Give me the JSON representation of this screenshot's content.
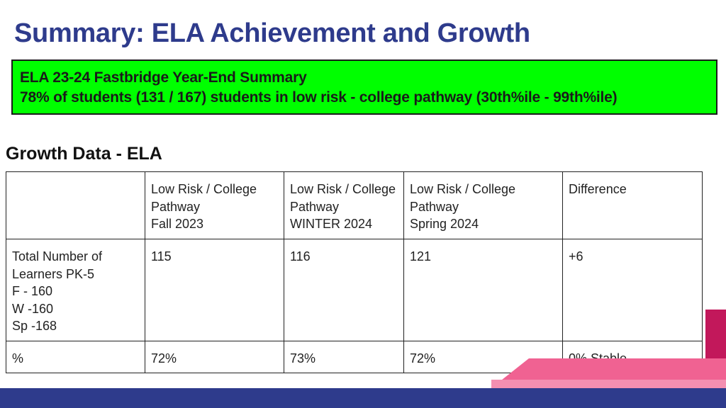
{
  "slide": {
    "title": "Summary: ELA Achievement and Growth"
  },
  "summary_box": {
    "line1": "ELA 23-24 Fastbridge Year-End Summary",
    "line2": "78% of students (131 / 167) students in low risk - college pathway (30th%ile - 99th%ile)",
    "background_color": "#00ff00"
  },
  "growth_section": {
    "title": "Growth Data - ELA",
    "table": {
      "headers": [
        "",
        "Low Risk / College\nPathway\nFall 2023",
        "Low Risk / College\nPathway\nWINTER 2024",
        "Low Risk / College\nPathway\nSpring 2024",
        "Difference"
      ],
      "rows": [
        [
          "Total Number of\nLearners PK-5\nF - 160\nW -160\nSp -168",
          "115",
          "116",
          "121",
          "+6"
        ],
        [
          "%",
          "72%",
          "73%",
          "72%",
          "0% Stable"
        ]
      ]
    }
  },
  "theme": {
    "title_color": "#2e3b8c",
    "bottom_bar_color": "#2e3b8c",
    "accent_pink": "#f06292",
    "accent_crimson": "#c2185b"
  }
}
